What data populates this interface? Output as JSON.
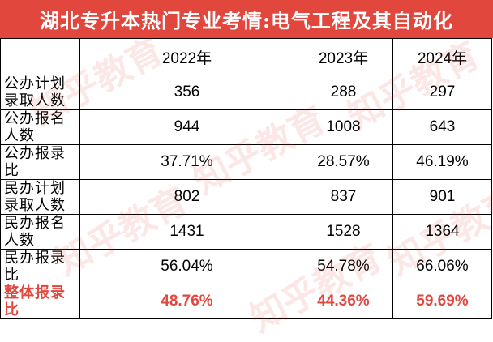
{
  "title": "湖北专升本热门专业考情:电气工程及其自动化",
  "columns": [
    "",
    "2022年",
    "2023年",
    "2024年"
  ],
  "rows": [
    {
      "label": "公办计划录取人数",
      "values": [
        "356",
        "288",
        "297"
      ],
      "highlight": false
    },
    {
      "label": "公办报名人数",
      "values": [
        "944",
        "1008",
        "643"
      ],
      "highlight": false
    },
    {
      "label": "公办报录比",
      "values": [
        "37.71%",
        "28.57%",
        "46.19%"
      ],
      "highlight": false
    },
    {
      "label": "民办计划录取人数",
      "values": [
        "802",
        "837",
        "901"
      ],
      "highlight": false
    },
    {
      "label": "民办报名人数",
      "values": [
        "1431",
        "1528",
        "1364"
      ],
      "highlight": false
    },
    {
      "label": "民办报录比",
      "values": [
        "56.04%",
        "54.78%",
        "66.06%"
      ],
      "highlight": false
    },
    {
      "label": "整体报录比",
      "values": [
        "48.76%",
        "44.36%",
        "59.69%"
      ],
      "highlight": true
    }
  ],
  "watermark": {
    "text": "知乎教育"
  },
  "colors": {
    "title_bg": "#e2473e",
    "highlight_text": "#e2473e"
  }
}
